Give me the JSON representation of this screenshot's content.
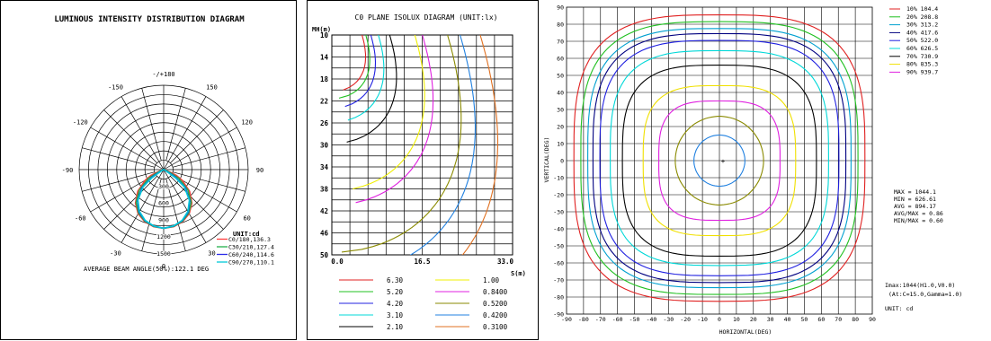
{
  "chart_data": [
    {
      "type": "polar",
      "title": "LUMINOUS INTENSITY DISTRIBUTION DIAGRAM",
      "angle_labels": [
        "-/+180",
        "150",
        "120",
        "90",
        "60",
        "30",
        "0",
        "-30",
        "-60",
        "-90",
        "-120",
        "-150"
      ],
      "radial_labels": [
        "300",
        "600",
        "900",
        "1200",
        "1500"
      ],
      "rmax": 1500,
      "unit": "UNIT:cd",
      "series": [
        {
          "name": "C0/180,136.3",
          "color": "#ff3b3b",
          "beam_half_angle": 68,
          "values": [
            [
              0,
              1044
            ],
            [
              10,
              1030
            ],
            [
              20,
              985
            ],
            [
              30,
              905
            ],
            [
              40,
              780
            ],
            [
              50,
              600
            ],
            [
              60,
              380
            ],
            [
              65,
              250
            ],
            [
              68,
              136
            ],
            [
              72,
              40
            ],
            [
              80,
              5
            ]
          ]
        },
        {
          "name": "C30/210,127.4",
          "color": "#22b14c",
          "beam_half_angle": 64,
          "values": [
            [
              0,
              1044
            ],
            [
              10,
              1025
            ],
            [
              20,
              975
            ],
            [
              30,
              890
            ],
            [
              40,
              760
            ],
            [
              50,
              560
            ],
            [
              60,
              310
            ],
            [
              64,
              127
            ],
            [
              70,
              30
            ],
            [
              80,
              5
            ]
          ]
        },
        {
          "name": "C60/240,114.6",
          "color": "#2a2ae8",
          "beam_half_angle": 59,
          "values": [
            [
              0,
              1044
            ],
            [
              10,
              1020
            ],
            [
              20,
              965
            ],
            [
              30,
              870
            ],
            [
              40,
              720
            ],
            [
              50,
              500
            ],
            [
              57,
              250
            ],
            [
              59,
              115
            ],
            [
              65,
              25
            ],
            [
              80,
              5
            ]
          ]
        },
        {
          "name": "C90/270,110.1",
          "color": "#00c8d8",
          "beam_half_angle": 57,
          "values": [
            [
              0,
              1044
            ],
            [
              10,
              1018
            ],
            [
              20,
              960
            ],
            [
              30,
              860
            ],
            [
              40,
              710
            ],
            [
              50,
              480
            ],
            [
              55,
              260
            ],
            [
              57,
              110
            ],
            [
              63,
              25
            ],
            [
              80,
              5
            ]
          ]
        }
      ],
      "footer": "AVERAGE BEAM ANGLE(50%):122.1 DEG"
    },
    {
      "type": "isolux",
      "title": "C0 PLANE ISOLUX DIAGRAM (UNIT:lx)",
      "ylabel": "MH(m)",
      "xlabel": "S(m)",
      "y_ticks": [
        "10",
        "14",
        "18",
        "22",
        "26",
        "30",
        "34",
        "38",
        "42",
        "46",
        "50"
      ],
      "x_ticks": [
        "0.0",
        "16.5",
        "33.0"
      ],
      "xlim": [
        0,
        33
      ],
      "ylim": [
        10,
        50
      ],
      "levels": [
        {
          "value": "6.30",
          "color": "#e02020",
          "a": 1.2
        },
        {
          "value": "5.20",
          "color": "#20c020",
          "a": 1.35
        },
        {
          "value": "4.20",
          "color": "#2020e0",
          "a": 1.55
        },
        {
          "value": "3.10",
          "color": "#00d8d8",
          "a": 1.85
        },
        {
          "value": "2.10",
          "color": "#000000",
          "a": 2.3
        },
        {
          "value": "1.00",
          "color": "#f0f000",
          "a": 3.3
        },
        {
          "value": "0.8400",
          "color": "#e020e0",
          "a": 3.6
        },
        {
          "value": "0.5200",
          "color": "#8a8a00",
          "a": 4.6
        },
        {
          "value": "0.4200",
          "color": "#2080e0",
          "a": 5.1
        },
        {
          "value": "0.3100",
          "color": "#e07020",
          "a": 5.9
        }
      ]
    },
    {
      "type": "isocandela",
      "xlabel": "HORIZONTAL(DEG)",
      "ylabel": "VERTICAL(DEG)",
      "xlim": [
        -90,
        90
      ],
      "ylim": [
        -90,
        90
      ],
      "x_ticks": [
        "-90",
        "-80",
        "-70",
        "-60",
        "-50",
        "-40",
        "-30",
        "-20",
        "-10",
        "0",
        "10",
        "20",
        "30",
        "40",
        "50",
        "60",
        "70",
        "80",
        "90"
      ],
      "y_ticks": [
        "90",
        "80",
        "70",
        "60",
        "50",
        "40",
        "30",
        "20",
        "10",
        "0",
        "-10",
        "-20",
        "-30",
        "-40",
        "-50",
        "-60",
        "-70",
        "-80",
        "-90"
      ],
      "legend": [
        {
          "label": "10% 104.4",
          "color": "#e02020",
          "r": 84
        },
        {
          "label": "20% 208.8",
          "color": "#20c020",
          "r": 80
        },
        {
          "label": "30% 313.2",
          "color": "#00a0d0",
          "r": 76
        },
        {
          "label": "40% 417.6",
          "color": "#000080",
          "r": 73
        },
        {
          "label": "50% 522.0",
          "color": "#2020e0",
          "r": 69
        },
        {
          "label": "60% 626.5",
          "color": "#00d8d8",
          "r": 63
        },
        {
          "label": "70% 730.9",
          "color": "#000000",
          "r": 56
        },
        {
          "label": "80% 835.3",
          "color": "#f0e000",
          "r": 44
        },
        {
          "label": "90% 939.7",
          "color": "#e020e0",
          "r": 35
        }
      ],
      "extra_contours": [
        {
          "color": "#8a8a00",
          "r": 26
        },
        {
          "color": "#2080e0",
          "r": 15
        }
      ],
      "stats": [
        "MAX = 1044.1",
        "MIN = 626.61",
        "AVG = 894.17",
        "AVG/MAX = 0.86",
        "MIN/MAX = 0.60"
      ],
      "imax": [
        "Imax:1044(H1.0,V0.0)",
        "(At:C=15.0,Gamma=1.0)"
      ],
      "unit": "UNIT: cd"
    }
  ]
}
